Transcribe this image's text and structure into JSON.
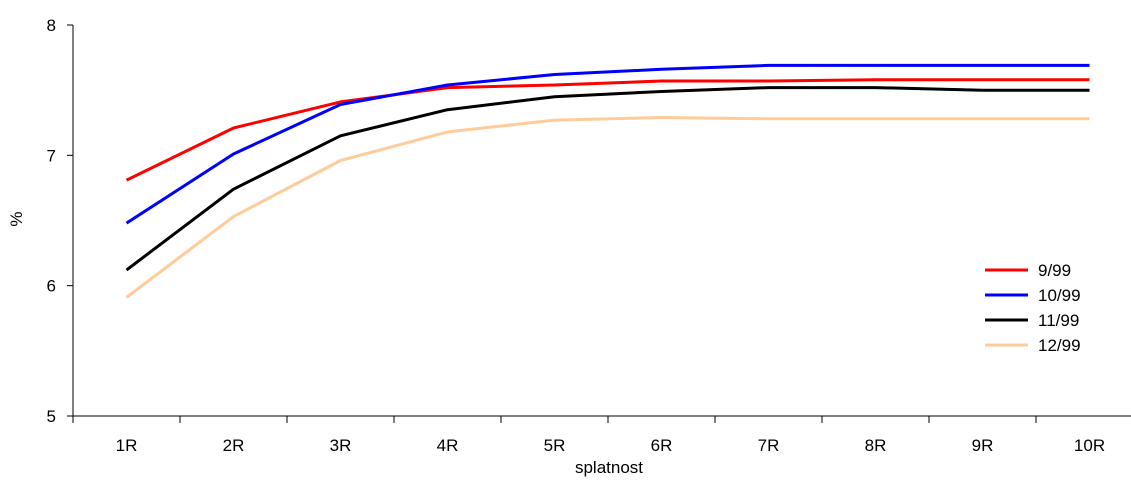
{
  "chart_data": {
    "type": "line",
    "title": "",
    "xlabel": "splatnost",
    "ylabel": "%",
    "categories": [
      "1R",
      "2R",
      "3R",
      "4R",
      "5R",
      "6R",
      "7R",
      "8R",
      "9R",
      "10R"
    ],
    "ylim": [
      5,
      8
    ],
    "yticks": [
      "5",
      "6",
      "7",
      "8"
    ],
    "grid": false,
    "legend_position": "right",
    "series": [
      {
        "name": "9/99",
        "color": "#ff0000",
        "values": [
          6.81,
          7.21,
          7.41,
          7.52,
          7.54,
          7.57,
          7.57,
          7.58,
          7.58,
          7.58
        ]
      },
      {
        "name": "10/99",
        "color": "#0000ff",
        "values": [
          6.48,
          7.01,
          7.39,
          7.54,
          7.62,
          7.66,
          7.69,
          7.69,
          7.69,
          7.69
        ]
      },
      {
        "name": "11/99",
        "color": "#000000",
        "values": [
          6.12,
          6.74,
          7.15,
          7.35,
          7.45,
          7.49,
          7.52,
          7.52,
          7.5,
          7.5
        ]
      },
      {
        "name": "12/99",
        "color": "#ffcc99",
        "values": [
          5.91,
          6.53,
          6.96,
          7.18,
          7.27,
          7.29,
          7.28,
          7.28,
          7.28,
          7.28
        ]
      }
    ]
  }
}
